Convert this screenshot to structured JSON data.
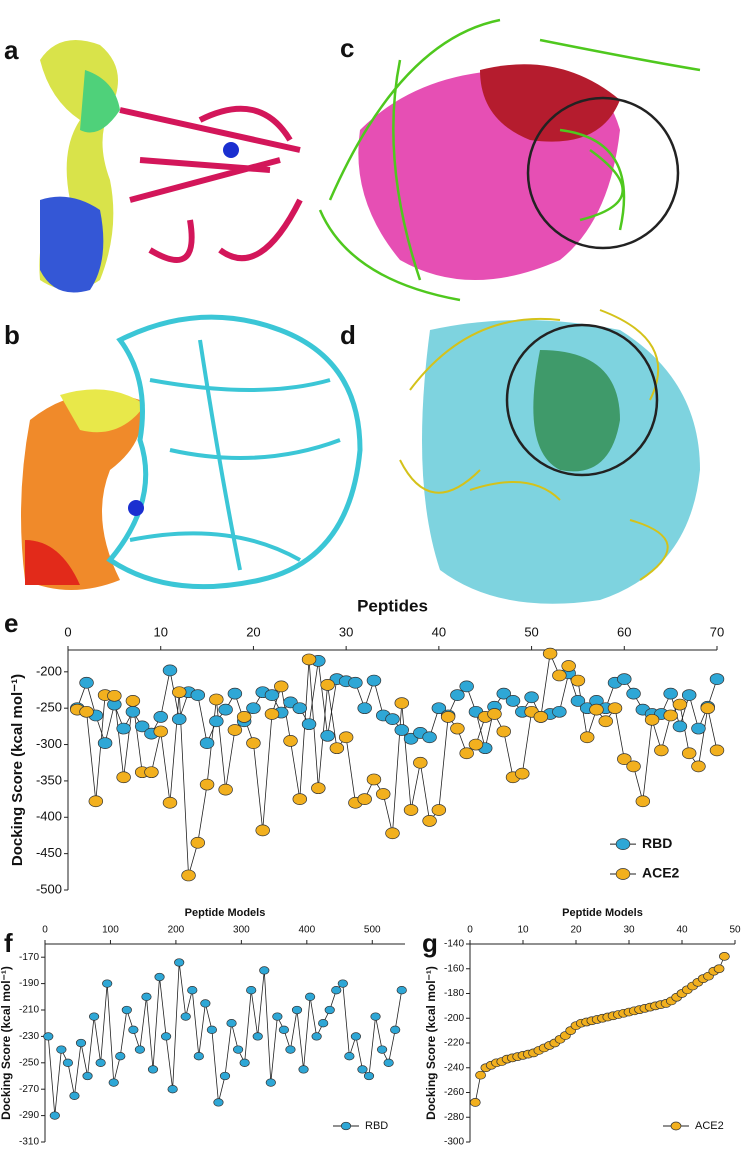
{
  "panel_labels": [
    "a",
    "b",
    "c",
    "d",
    "e",
    "f",
    "g"
  ],
  "chart_data": [
    {
      "type": "line",
      "title": "Peptides",
      "y_label": "Docking Score (kcal mol⁻¹)",
      "x": [
        1,
        2,
        3,
        4,
        5,
        6,
        7,
        8,
        9,
        10,
        11,
        12,
        13,
        14,
        15,
        16,
        17,
        18,
        19,
        20,
        21,
        22,
        23,
        24,
        25,
        26,
        27,
        28,
        29,
        30,
        31,
        32,
        33,
        34,
        35,
        36,
        37,
        38,
        39,
        40,
        41,
        42,
        43,
        44,
        45,
        46,
        47,
        48,
        49,
        50,
        51,
        52,
        53,
        54,
        55,
        56,
        57,
        58,
        59,
        60,
        61,
        62,
        63,
        64,
        65,
        66,
        67,
        68,
        69,
        70
      ],
      "series": [
        {
          "name": "RBD",
          "color": "#2ea7d6",
          "values": [
            -250,
            -215,
            -260,
            -298,
            -245,
            -278,
            -255,
            -275,
            -285,
            -262,
            -198,
            -265,
            -228,
            -232,
            -298,
            -268,
            -252,
            -230,
            -268,
            -250,
            -228,
            -232,
            -256,
            -242,
            -250,
            -272,
            -185,
            -288,
            -210,
            -213,
            -215,
            -250,
            -212,
            -260,
            -265,
            -280,
            -292,
            -284,
            -290,
            -250,
            -260,
            -232,
            -220,
            -255,
            -305,
            -248,
            -230,
            -240,
            -255,
            -235,
            -262,
            -258,
            -255,
            -202,
            -240,
            -250,
            -240,
            -250,
            -215,
            -210,
            -230,
            -252,
            -258,
            -258,
            -230,
            -275,
            -232,
            -278,
            -248,
            -210
          ]
        },
        {
          "name": "ACE2",
          "color": "#f2b01e",
          "values": [
            -252,
            -255,
            -378,
            -232,
            -233,
            -345,
            -240,
            -338,
            -338,
            -282,
            -380,
            -228,
            -480,
            -435,
            -355,
            -238,
            -362,
            -280,
            -262,
            -298,
            -418,
            -258,
            -220,
            -295,
            -375,
            -183,
            -360,
            -218,
            -305,
            -290,
            -380,
            -375,
            -348,
            -368,
            -422,
            -243,
            -390,
            -325,
            -405,
            -390,
            -262,
            -278,
            -312,
            -300,
            -262,
            -258,
            -282,
            -345,
            -340,
            -255,
            -262,
            -175,
            -205,
            -192,
            -212,
            -290,
            -252,
            -268,
            -250,
            -320,
            -330,
            -378,
            -266,
            -308,
            -260,
            -245,
            -312,
            -330,
            -250,
            -308
          ]
        }
      ],
      "xlim": [
        0,
        70
      ],
      "xticks": [
        0,
        10,
        20,
        30,
        40,
        50,
        60,
        70
      ],
      "ylim": [
        -500,
        -170
      ],
      "yticks": [
        -200,
        -250,
        -300,
        -350,
        -400,
        -450,
        -500
      ],
      "legend": "lower right"
    },
    {
      "type": "line",
      "title": "Peptide Models",
      "y_label": "Docking Score (kcal mol⁻¹)",
      "x": [
        5,
        15,
        25,
        35,
        45,
        55,
        65,
        75,
        85,
        95,
        105,
        115,
        125,
        135,
        145,
        155,
        165,
        175,
        185,
        195,
        205,
        215,
        225,
        235,
        245,
        255,
        265,
        275,
        285,
        295,
        305,
        315,
        325,
        335,
        345,
        355,
        365,
        375,
        385,
        395,
        405,
        415,
        425,
        435,
        445,
        455,
        465,
        475,
        485,
        495,
        505,
        515,
        525,
        535,
        545
      ],
      "series": [
        {
          "name": "RBD",
          "color": "#2ea7d6",
          "values": [
            -230,
            -290,
            -240,
            -250,
            -275,
            -235,
            -260,
            -215,
            -250,
            -190,
            -265,
            -245,
            -210,
            -225,
            -240,
            -200,
            -255,
            -185,
            -230,
            -270,
            -174,
            -215,
            -195,
            -245,
            -205,
            -225,
            -280,
            -260,
            -220,
            -240,
            -250,
            -195,
            -230,
            -180,
            -265,
            -215,
            -225,
            -240,
            -210,
            -255,
            -200,
            -230,
            -220,
            -210,
            -195,
            -190,
            -245,
            -230,
            -255,
            -260,
            -215,
            -240,
            -250,
            -225,
            -195
          ]
        }
      ],
      "xlim": [
        0,
        550
      ],
      "xticks": [
        0,
        100,
        200,
        300,
        400,
        500
      ],
      "ylim": [
        -310,
        -160
      ],
      "yticks": [
        -170,
        -190,
        -210,
        -230,
        -250,
        -270,
        -290,
        -310
      ],
      "legend": "lower right"
    },
    {
      "type": "line",
      "title": "Peptide Models",
      "y_label": "Docking Score (kcal mol⁻¹)",
      "x": [
        1,
        2,
        3,
        4,
        5,
        6,
        7,
        8,
        9,
        10,
        11,
        12,
        13,
        14,
        15,
        16,
        17,
        18,
        19,
        20,
        21,
        22,
        23,
        24,
        25,
        26,
        27,
        28,
        29,
        30,
        31,
        32,
        33,
        34,
        35,
        36,
        37,
        38,
        39,
        40,
        41,
        42,
        43,
        44,
        45,
        46,
        47,
        48
      ],
      "series": [
        {
          "name": "ACE2",
          "color": "#f2b01e",
          "values": [
            -268,
            -246,
            -240,
            -238,
            -236,
            -235,
            -233,
            -232,
            -231,
            -230,
            -229,
            -228,
            -226,
            -224,
            -222,
            -220,
            -217,
            -214,
            -210,
            -206,
            -204,
            -203,
            -202,
            -201,
            -200,
            -199,
            -198,
            -197,
            -196,
            -195,
            -194,
            -193,
            -192,
            -191,
            -190,
            -189,
            -188,
            -186,
            -183,
            -180,
            -177,
            -174,
            -171,
            -168,
            -166,
            -162,
            -160,
            -150
          ]
        }
      ],
      "xlim": [
        0,
        50
      ],
      "xticks": [
        0,
        10,
        20,
        30,
        40,
        50
      ],
      "ylim": [
        -300,
        -140
      ],
      "yticks": [
        -140,
        -160,
        -180,
        -200,
        -220,
        -240,
        -260,
        -280,
        -300
      ],
      "legend": "lower right"
    }
  ]
}
